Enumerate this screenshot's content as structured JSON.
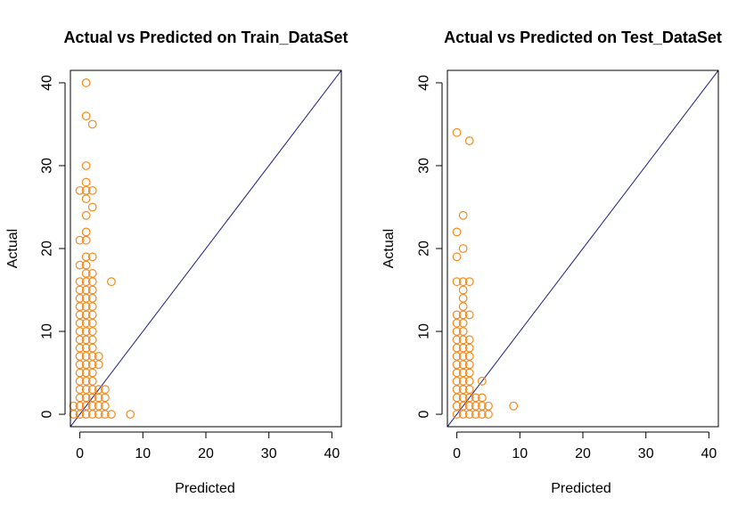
{
  "colors": {
    "points": "#F08A1E",
    "diagonal": "#1C1C80",
    "axes": "#000000"
  },
  "chart_data": [
    {
      "type": "scatter",
      "title": "Actual vs Predicted on Train_DataSet",
      "xlabel": "Predicted",
      "ylabel": "Actual",
      "xlim": [
        -1.5,
        41.5
      ],
      "ylim": [
        -1.5,
        41.5
      ],
      "xticks": [
        0,
        10,
        20,
        30,
        40
      ],
      "yticks": [
        0,
        10,
        20,
        30,
        40
      ],
      "reference_line": "y = x",
      "marker": "open-circle",
      "points": [
        [
          -1,
          0
        ],
        [
          -1,
          1
        ],
        [
          0,
          0
        ],
        [
          0,
          1
        ],
        [
          0,
          2
        ],
        [
          0,
          3
        ],
        [
          0,
          4
        ],
        [
          0,
          5
        ],
        [
          0,
          6
        ],
        [
          0,
          7
        ],
        [
          0,
          8
        ],
        [
          0,
          9
        ],
        [
          0,
          10
        ],
        [
          0,
          11
        ],
        [
          0,
          12
        ],
        [
          0,
          13
        ],
        [
          0,
          14
        ],
        [
          0,
          15
        ],
        [
          0,
          16
        ],
        [
          0,
          18
        ],
        [
          0,
          21
        ],
        [
          0,
          27
        ],
        [
          1,
          0
        ],
        [
          1,
          1
        ],
        [
          1,
          2
        ],
        [
          1,
          3
        ],
        [
          1,
          4
        ],
        [
          1,
          5
        ],
        [
          1,
          6
        ],
        [
          1,
          7
        ],
        [
          1,
          8
        ],
        [
          1,
          9
        ],
        [
          1,
          10
        ],
        [
          1,
          11
        ],
        [
          1,
          12
        ],
        [
          1,
          13
        ],
        [
          1,
          14
        ],
        [
          1,
          15
        ],
        [
          1,
          16
        ],
        [
          1,
          17
        ],
        [
          1,
          18
        ],
        [
          1,
          19
        ],
        [
          1,
          21
        ],
        [
          1,
          22
        ],
        [
          1,
          24
        ],
        [
          1,
          26
        ],
        [
          1,
          27
        ],
        [
          1,
          28
        ],
        [
          1,
          30
        ],
        [
          1,
          36
        ],
        [
          1,
          40
        ],
        [
          2,
          0
        ],
        [
          2,
          1
        ],
        [
          2,
          2
        ],
        [
          2,
          3
        ],
        [
          2,
          4
        ],
        [
          2,
          5
        ],
        [
          2,
          6
        ],
        [
          2,
          7
        ],
        [
          2,
          8
        ],
        [
          2,
          9
        ],
        [
          2,
          10
        ],
        [
          2,
          11
        ],
        [
          2,
          12
        ],
        [
          2,
          13
        ],
        [
          2,
          14
        ],
        [
          2,
          15
        ],
        [
          2,
          16
        ],
        [
          2,
          17
        ],
        [
          2,
          19
        ],
        [
          2,
          25
        ],
        [
          2,
          27
        ],
        [
          2,
          35
        ],
        [
          3,
          0
        ],
        [
          3,
          1
        ],
        [
          3,
          2
        ],
        [
          3,
          3
        ],
        [
          3,
          6
        ],
        [
          3,
          7
        ],
        [
          4,
          0
        ],
        [
          4,
          1
        ],
        [
          4,
          2
        ],
        [
          4,
          3
        ],
        [
          5,
          0
        ],
        [
          5,
          16
        ],
        [
          8,
          0
        ]
      ]
    },
    {
      "type": "scatter",
      "title": "Actual vs Predicted on Test_DataSet",
      "xlabel": "Predicted",
      "ylabel": "Actual",
      "xlim": [
        -1.5,
        41.5
      ],
      "ylim": [
        -1.5,
        41.5
      ],
      "xticks": [
        0,
        10,
        20,
        30,
        40
      ],
      "yticks": [
        0,
        10,
        20,
        30,
        40
      ],
      "reference_line": "y = x",
      "marker": "open-circle",
      "points": [
        [
          0,
          0
        ],
        [
          0,
          1
        ],
        [
          0,
          2
        ],
        [
          0,
          3
        ],
        [
          0,
          4
        ],
        [
          0,
          5
        ],
        [
          0,
          6
        ],
        [
          0,
          7
        ],
        [
          0,
          8
        ],
        [
          0,
          9
        ],
        [
          0,
          10
        ],
        [
          0,
          11
        ],
        [
          0,
          12
        ],
        [
          0,
          16
        ],
        [
          0,
          19
        ],
        [
          0,
          22
        ],
        [
          0,
          34
        ],
        [
          1,
          0
        ],
        [
          1,
          1
        ],
        [
          1,
          2
        ],
        [
          1,
          3
        ],
        [
          1,
          4
        ],
        [
          1,
          5
        ],
        [
          1,
          6
        ],
        [
          1,
          7
        ],
        [
          1,
          8
        ],
        [
          1,
          9
        ],
        [
          1,
          10
        ],
        [
          1,
          11
        ],
        [
          1,
          12
        ],
        [
          1,
          13
        ],
        [
          1,
          14
        ],
        [
          1,
          15
        ],
        [
          1,
          16
        ],
        [
          1,
          20
        ],
        [
          1,
          24
        ],
        [
          2,
          0
        ],
        [
          2,
          1
        ],
        [
          2,
          2
        ],
        [
          2,
          3
        ],
        [
          2,
          4
        ],
        [
          2,
          5
        ],
        [
          2,
          6
        ],
        [
          2,
          7
        ],
        [
          2,
          8
        ],
        [
          2,
          9
        ],
        [
          2,
          12
        ],
        [
          2,
          16
        ],
        [
          2,
          33
        ],
        [
          3,
          0
        ],
        [
          3,
          1
        ],
        [
          3,
          2
        ],
        [
          4,
          0
        ],
        [
          4,
          1
        ],
        [
          4,
          2
        ],
        [
          4,
          4
        ],
        [
          5,
          0
        ],
        [
          5,
          1
        ],
        [
          9,
          1
        ]
      ]
    }
  ]
}
